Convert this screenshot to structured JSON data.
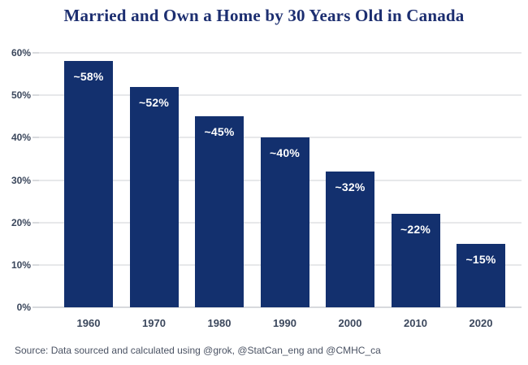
{
  "title": "Married and Own a Home by 30 Years Old in Canada",
  "source_note": "Source: Data sourced and calculated using @grok, @StatCan_eng and @CMHC_ca",
  "colors": {
    "bar": "#13306e",
    "title": "#1c2e70",
    "axis_label": "#3b475c",
    "gridline": "#e7e8ea",
    "baseline": "#d8dadd",
    "bar_label_text": "#ffffff",
    "background": "#ffffff"
  },
  "chart_data": {
    "type": "bar",
    "title": "Married and Own a Home by 30 Years Old in Canada",
    "categories": [
      "1960",
      "1970",
      "1980",
      "1990",
      "2000",
      "2010",
      "2020"
    ],
    "values": [
      58,
      52,
      45,
      40,
      32,
      22,
      15
    ],
    "bar_labels": [
      "~58%",
      "~52%",
      "~45%",
      "~40%",
      "~32%",
      "~22%",
      "~15%"
    ],
    "xlabel": "",
    "ylabel": "",
    "ylim": [
      0,
      60
    ],
    "yticks": [
      0,
      10,
      20,
      30,
      40,
      50,
      60
    ],
    "ytick_labels": [
      "0%",
      "10%",
      "20%",
      "30%",
      "40%",
      "50%",
      "60%"
    ],
    "grid": "horizontal",
    "legend": "none",
    "annotation": "Source: Data sourced and calculated using @grok, @StatCan_eng and @CMHC_ca"
  }
}
